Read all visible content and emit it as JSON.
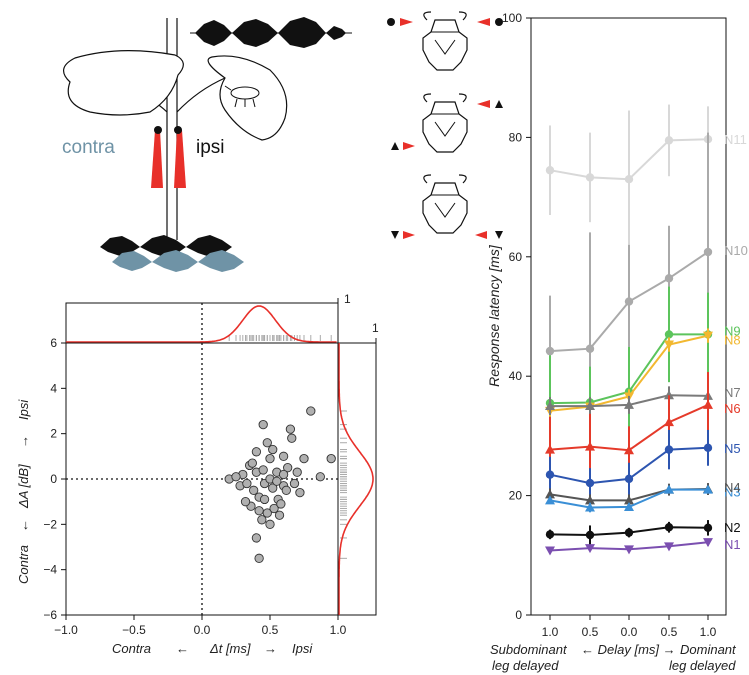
{
  "colors": {
    "red": "#e8302a",
    "contra_blue": "#6f93a6",
    "gray_point": "#b0b0b0",
    "n1": "#7b4fb0",
    "n2": "#111111",
    "n3": "#3a8fd6",
    "n4": "#555555",
    "n5": "#2d55b0",
    "n6": "#e53a2a",
    "n7": "#7a7a7a",
    "n8": "#f2b830",
    "n9": "#5cc45c",
    "n10": "#aaaaaa",
    "n11": "#d8d8d8"
  },
  "panel_a": {
    "contra_label": "contra",
    "ipsi_label": "ipsi"
  },
  "panel_b": {
    "icons": [
      "dot-then-red-arrow",
      "red-arrow-then-triangle-up",
      "triangle-down-then-red-arrow"
    ]
  },
  "chart_data": [
    {
      "type": "scatter",
      "x_range": [
        -1.0,
        1.0
      ],
      "y_range": [
        -6,
        6
      ],
      "x_ticks": [
        "-1.0",
        "-0.5",
        "0.0",
        "0.5",
        "1.0"
      ],
      "y_ticks": [
        "-6",
        "-4",
        "-2",
        "0",
        "2",
        "4",
        "6"
      ],
      "xlabel_left": "Contra",
      "xlabel_arrow_left": "←",
      "xlabel_center": "Δt [ms]",
      "xlabel_arrow_right": "→",
      "xlabel_right": "Ipsi",
      "ylabel_bottom": "Contra",
      "ylabel_arrow_bottom": "←",
      "ylabel_center": "ΔA [dB]",
      "ylabel_arrow_top": "→",
      "ylabel_top": "Ipsi",
      "marginal_top_tick": "1",
      "marginal_right_tick": "1",
      "zero_lines": "dotted",
      "points": [
        [
          0.3,
          0.2
        ],
        [
          0.35,
          0.6
        ],
        [
          0.4,
          1.2
        ],
        [
          0.45,
          2.4
        ],
        [
          0.48,
          1.6
        ],
        [
          0.5,
          0.9
        ],
        [
          0.55,
          0.3
        ],
        [
          0.6,
          1.0
        ],
        [
          0.65,
          2.2
        ],
        [
          0.66,
          1.8
        ],
        [
          0.8,
          3.0
        ],
        [
          0.75,
          0.9
        ],
        [
          0.95,
          0.9
        ],
        [
          0.87,
          0.1
        ],
        [
          0.7,
          0.3
        ],
        [
          0.2,
          0.0
        ],
        [
          0.25,
          0.1
        ],
        [
          0.28,
          -0.3
        ],
        [
          0.33,
          -0.2
        ],
        [
          0.38,
          -0.5
        ],
        [
          0.42,
          -0.8
        ],
        [
          0.46,
          -0.2
        ],
        [
          0.52,
          -0.4
        ],
        [
          0.56,
          -0.9
        ],
        [
          0.6,
          -0.3
        ],
        [
          0.62,
          -0.5
        ],
        [
          0.68,
          -0.2
        ],
        [
          0.72,
          -0.6
        ],
        [
          0.4,
          0.3
        ],
        [
          0.45,
          0.4
        ],
        [
          0.5,
          0.0
        ],
        [
          0.36,
          -1.2
        ],
        [
          0.42,
          -1.4
        ],
        [
          0.48,
          -1.5
        ],
        [
          0.53,
          -1.3
        ],
        [
          0.58,
          -1.1
        ],
        [
          0.44,
          -1.8
        ],
        [
          0.5,
          -2.0
        ],
        [
          0.57,
          -1.6
        ],
        [
          0.4,
          -2.6
        ],
        [
          0.42,
          -3.5
        ],
        [
          0.32,
          -1.0
        ],
        [
          0.37,
          0.7
        ],
        [
          0.52,
          1.3
        ],
        [
          0.63,
          0.5
        ],
        [
          0.46,
          -0.9
        ],
        [
          0.55,
          -0.1
        ],
        [
          0.6,
          0.2
        ]
      ],
      "marginal_x_mean": 0.42,
      "marginal_x_sd": 0.12,
      "marginal_y_mean": 0.0,
      "marginal_y_sd": 1.2
    },
    {
      "type": "line",
      "ylabel": "Response latency [ms]",
      "ylim": [
        0,
        100
      ],
      "y_ticks": [
        "0",
        "20",
        "40",
        "60",
        "80",
        "100"
      ],
      "x_ticks": [
        "1.0",
        "0.5",
        "0.0",
        "0.5",
        "1.0"
      ],
      "xlabel_left": "Subdominant",
      "xlabel_left2": "leg delayed",
      "xlabel_center": "← Delay [ms] →",
      "xlabel_right": "Dominant",
      "xlabel_right2": "leg delayed",
      "series": [
        {
          "name": "N1",
          "marker": "triangle-down",
          "color": "#7b4fb0",
          "values": [
            10.8,
            11.2,
            11.0,
            11.5,
            12.2
          ],
          "err": [
            0.5,
            0.5,
            0.5,
            0.5,
            0.6
          ]
        },
        {
          "name": "N2",
          "marker": "circle",
          "color": "#111111",
          "values": [
            13.5,
            13.4,
            13.8,
            14.7,
            14.6
          ],
          "err": [
            0.8,
            1.6,
            0.8,
            0.9,
            1.3
          ]
        },
        {
          "name": "N3",
          "marker": "triangle-up",
          "color": "#3a8fd6",
          "values": [
            19.2,
            18.0,
            18.1,
            21.0,
            21.0
          ],
          "err": [
            0.6,
            0.8,
            0.6,
            0.6,
            0.6
          ]
        },
        {
          "name": "N4",
          "marker": "triangle-up",
          "color": "#555555",
          "values": [
            20.2,
            19.2,
            19.2,
            21.0,
            21.1
          ],
          "err": [
            1.0,
            1.0,
            1.0,
            1.0,
            1.0
          ]
        },
        {
          "name": "N5",
          "marker": "circle",
          "color": "#2d55b0",
          "values": [
            23.5,
            22.1,
            22.8,
            27.7,
            28.0
          ],
          "err": [
            3.0,
            2.5,
            2.7,
            3.3,
            3.0
          ]
        },
        {
          "name": "N6",
          "marker": "triangle-up",
          "color": "#e53a2a",
          "values": [
            27.7,
            28.2,
            27.6,
            32.3,
            35.2
          ],
          "err": [
            5.5,
            5.5,
            4.0,
            4.5,
            5.5
          ]
        },
        {
          "name": "N7",
          "marker": "triangle-up",
          "color": "#7a7a7a",
          "values": [
            35.0,
            35.0,
            35.2,
            36.8,
            36.7
          ],
          "err": [
            1.5,
            1.5,
            1.5,
            1.5,
            1.5
          ]
        },
        {
          "name": "N8",
          "marker": "triangle-down",
          "color": "#f2b830",
          "values": [
            34.2,
            34.9,
            36.6,
            45.3,
            46.8
          ],
          "err": [
            1.0,
            1.0,
            1.2,
            1.2,
            1.2
          ]
        },
        {
          "name": "N9",
          "marker": "circle",
          "color": "#5cc45c",
          "values": [
            35.5,
            35.6,
            37.4,
            47.0,
            47.0
          ],
          "err": [
            8.0,
            6.0,
            7.5,
            8.0,
            7.0
          ]
        },
        {
          "name": "N10",
          "marker": "circle",
          "color": "#aaaaaa",
          "values": [
            44.2,
            44.6,
            52.5,
            56.4,
            60.8
          ],
          "err": [
            9.3,
            19.5,
            9.5,
            8.8,
            20.0
          ]
        },
        {
          "name": "N11",
          "marker": "circle",
          "color": "#d8d8d8",
          "values": [
            74.5,
            73.3,
            73.0,
            79.5,
            79.7
          ],
          "err": [
            7.5,
            7.5,
            11.5,
            6.0,
            5.5
          ]
        }
      ]
    }
  ]
}
